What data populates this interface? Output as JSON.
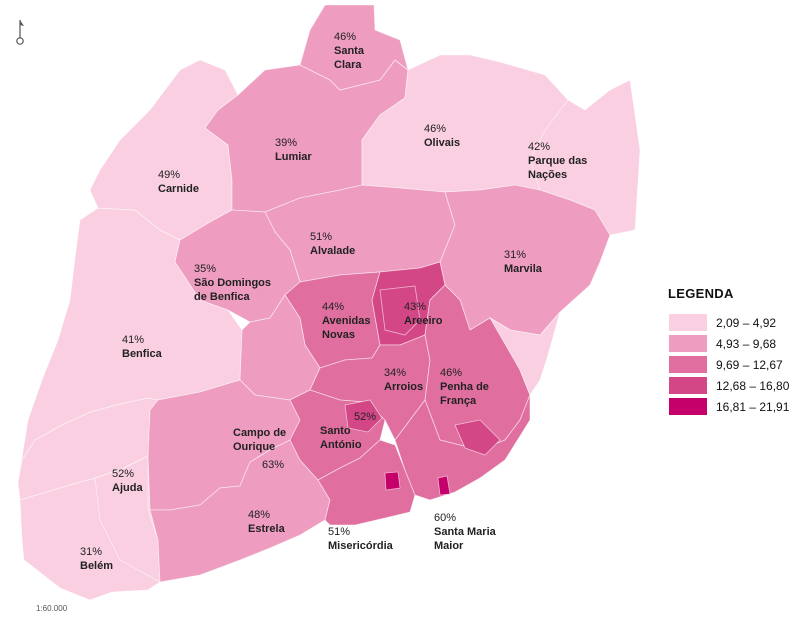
{
  "scale_text": "1:60.000",
  "legend": {
    "title": "LEGENDA",
    "classes": [
      {
        "label": "2,09 – 4,92",
        "color": "#f9cfe1"
      },
      {
        "label": "4,93 – 9,68",
        "color": "#ee9cc0"
      },
      {
        "label": "9,69 – 12,67",
        "color": "#e06fa0"
      },
      {
        "label": "12,68 – 16,80",
        "color": "#d44786"
      },
      {
        "label": "16,81 – 21,91",
        "color": "#c5006a"
      }
    ]
  },
  "parishes": [
    {
      "id": "santa-clara",
      "pct": "46%",
      "name": "Santa",
      "name2": "Clara",
      "class": 1
    },
    {
      "id": "lumiar",
      "pct": "39%",
      "name": "Lumiar",
      "class": 1
    },
    {
      "id": "olivais",
      "pct": "46%",
      "name": "Olivais",
      "class": 0
    },
    {
      "id": "parque-das-nacoes",
      "pct": "42%",
      "name": "Parque das",
      "name2": "Nações",
      "class": 0
    },
    {
      "id": "carnide",
      "pct": "49%",
      "name": "Carnide",
      "class": 0
    },
    {
      "id": "alvalade",
      "pct": "51%",
      "name": "Alvalade",
      "class": 1
    },
    {
      "id": "marvila",
      "pct": "31%",
      "name": "Marvila",
      "class": 1
    },
    {
      "id": "sao-domingos-de-benfica",
      "pct": "35%",
      "name": "São Domingos",
      "name2": "de Benfica",
      "class": 1
    },
    {
      "id": "avenidas-novas",
      "pct": "44%",
      "name": "Avenidas",
      "name2": "Novas",
      "class": 2
    },
    {
      "id": "areeiro",
      "pct": "43%",
      "name": "Areeiro",
      "class": 3
    },
    {
      "id": "benfica",
      "pct": "41%",
      "name": "Benfica",
      "class": 0
    },
    {
      "id": "arroios",
      "pct": "34%",
      "name": "Arroios",
      "class": 2
    },
    {
      "id": "penha-de-franca",
      "pct": "46%",
      "name": "Penha de",
      "name2": "França",
      "class": 2
    },
    {
      "id": "campo-de-ourique",
      "pct": "63%",
      "name": "Campo de",
      "name2": "Ourique",
      "class": 1
    },
    {
      "id": "santo-antonio",
      "pct": "52%",
      "name": "Santo",
      "name2": "António",
      "class": 2
    },
    {
      "id": "ajuda",
      "pct": "52%",
      "name": "Ajuda",
      "class": 0
    },
    {
      "id": "estrela",
      "pct": "48%",
      "name": "Estrela",
      "class": 1
    },
    {
      "id": "misericordia",
      "pct": "51%",
      "name": "Misericórdia",
      "class": 2
    },
    {
      "id": "santa-maria-maior",
      "pct": "60%",
      "name": "Santa Maria",
      "name2": "Maior",
      "class": 2
    },
    {
      "id": "belem",
      "pct": "31%",
      "name": "Belém",
      "class": 0
    }
  ]
}
